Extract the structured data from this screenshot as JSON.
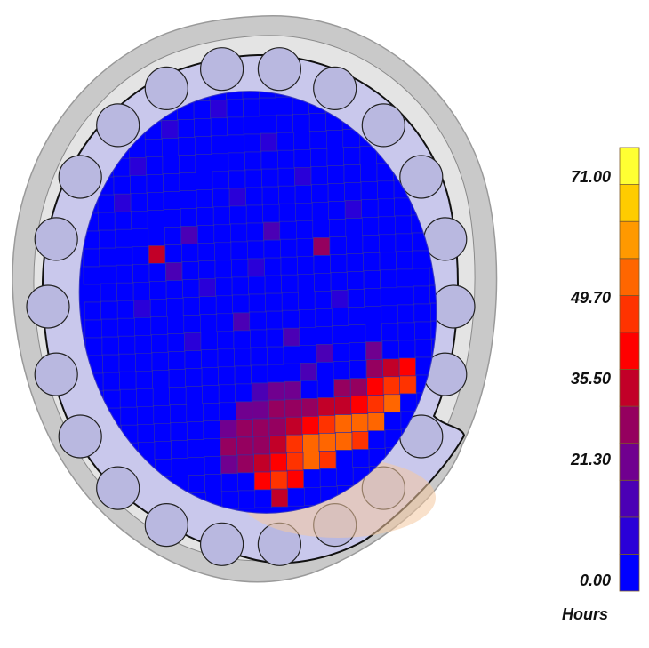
{
  "chart_data": {
    "type": "heatmap",
    "title": "",
    "unit": "Hours",
    "colorbar": {
      "min": 0,
      "max": 78,
      "ticks": [
        {
          "value": 0,
          "label": "0.00"
        },
        {
          "value": 21.3,
          "label": "21.30"
        },
        {
          "value": 35.5,
          "label": "35.50"
        },
        {
          "value": 49.7,
          "label": "49.70"
        },
        {
          "value": 71.0,
          "label": "71.00"
        }
      ],
      "colors": [
        "#0000ff",
        "#2a00d8",
        "#4b00b5",
        "#70008f",
        "#95005f",
        "#c20028",
        "#ff0000",
        "#ff3300",
        "#ff6600",
        "#ff9900",
        "#ffcc00",
        "#ffff33"
      ]
    },
    "grid": {
      "rows": 24,
      "cols": 22,
      "background_value": 2,
      "hot_cells": [
        {
          "r": 1,
          "c": 8,
          "v": 12
        },
        {
          "r": 2,
          "c": 5,
          "v": 10
        },
        {
          "r": 3,
          "c": 11,
          "v": 12
        },
        {
          "r": 4,
          "c": 3,
          "v": 9
        },
        {
          "r": 5,
          "c": 13,
          "v": 11
        },
        {
          "r": 6,
          "c": 2,
          "v": 12
        },
        {
          "r": 6,
          "c": 9,
          "v": 10
        },
        {
          "r": 7,
          "c": 16,
          "v": 9
        },
        {
          "r": 8,
          "c": 6,
          "v": 14
        },
        {
          "r": 8,
          "c": 11,
          "v": 13
        },
        {
          "r": 9,
          "c": 4,
          "v": 34
        },
        {
          "r": 9,
          "c": 14,
          "v": 32
        },
        {
          "r": 10,
          "c": 5,
          "v": 15
        },
        {
          "r": 10,
          "c": 10,
          "v": 11
        },
        {
          "r": 11,
          "c": 7,
          "v": 12
        },
        {
          "r": 12,
          "c": 3,
          "v": 10
        },
        {
          "r": 12,
          "c": 15,
          "v": 11
        },
        {
          "r": 13,
          "c": 9,
          "v": 13
        },
        {
          "r": 14,
          "c": 6,
          "v": 12
        },
        {
          "r": 14,
          "c": 12,
          "v": 15
        },
        {
          "r": 15,
          "c": 14,
          "v": 18
        },
        {
          "r": 15,
          "c": 17,
          "v": 24
        },
        {
          "r": 16,
          "c": 13,
          "v": 15
        },
        {
          "r": 16,
          "c": 17,
          "v": 28
        },
        {
          "r": 16,
          "c": 18,
          "v": 38
        },
        {
          "r": 16,
          "c": 19,
          "v": 44
        },
        {
          "r": 17,
          "c": 10,
          "v": 18
        },
        {
          "r": 17,
          "c": 11,
          "v": 20
        },
        {
          "r": 17,
          "c": 12,
          "v": 22
        },
        {
          "r": 17,
          "c": 15,
          "v": 26
        },
        {
          "r": 17,
          "c": 16,
          "v": 30
        },
        {
          "r": 17,
          "c": 17,
          "v": 40
        },
        {
          "r": 17,
          "c": 18,
          "v": 46
        },
        {
          "r": 17,
          "c": 19,
          "v": 50
        },
        {
          "r": 18,
          "c": 9,
          "v": 20
        },
        {
          "r": 18,
          "c": 10,
          "v": 24
        },
        {
          "r": 18,
          "c": 11,
          "v": 26
        },
        {
          "r": 18,
          "c": 12,
          "v": 28
        },
        {
          "r": 18,
          "c": 13,
          "v": 30
        },
        {
          "r": 18,
          "c": 14,
          "v": 34
        },
        {
          "r": 18,
          "c": 15,
          "v": 38
        },
        {
          "r": 18,
          "c": 16,
          "v": 44
        },
        {
          "r": 18,
          "c": 17,
          "v": 50
        },
        {
          "r": 18,
          "c": 18,
          "v": 52
        },
        {
          "r": 19,
          "c": 8,
          "v": 24
        },
        {
          "r": 19,
          "c": 9,
          "v": 28
        },
        {
          "r": 19,
          "c": 10,
          "v": 30
        },
        {
          "r": 19,
          "c": 11,
          "v": 32
        },
        {
          "r": 19,
          "c": 12,
          "v": 36
        },
        {
          "r": 19,
          "c": 13,
          "v": 44
        },
        {
          "r": 19,
          "c": 14,
          "v": 50
        },
        {
          "r": 19,
          "c": 15,
          "v": 52
        },
        {
          "r": 19,
          "c": 16,
          "v": 54
        },
        {
          "r": 19,
          "c": 17,
          "v": 52
        },
        {
          "r": 20,
          "c": 8,
          "v": 26
        },
        {
          "r": 20,
          "c": 9,
          "v": 30
        },
        {
          "r": 20,
          "c": 10,
          "v": 32
        },
        {
          "r": 20,
          "c": 11,
          "v": 36
        },
        {
          "r": 20,
          "c": 12,
          "v": 50
        },
        {
          "r": 20,
          "c": 13,
          "v": 54
        },
        {
          "r": 20,
          "c": 14,
          "v": 56
        },
        {
          "r": 20,
          "c": 15,
          "v": 54
        },
        {
          "r": 20,
          "c": 16,
          "v": 50
        },
        {
          "r": 21,
          "c": 8,
          "v": 24
        },
        {
          "r": 21,
          "c": 9,
          "v": 30
        },
        {
          "r": 21,
          "c": 10,
          "v": 34
        },
        {
          "r": 21,
          "c": 11,
          "v": 44
        },
        {
          "r": 21,
          "c": 12,
          "v": 50
        },
        {
          "r": 21,
          "c": 13,
          "v": 52
        },
        {
          "r": 21,
          "c": 14,
          "v": 48
        },
        {
          "r": 22,
          "c": 10,
          "v": 40
        },
        {
          "r": 22,
          "c": 11,
          "v": 46
        },
        {
          "r": 22,
          "c": 12,
          "v": 44
        },
        {
          "r": 23,
          "c": 11,
          "v": 36
        }
      ]
    }
  }
}
